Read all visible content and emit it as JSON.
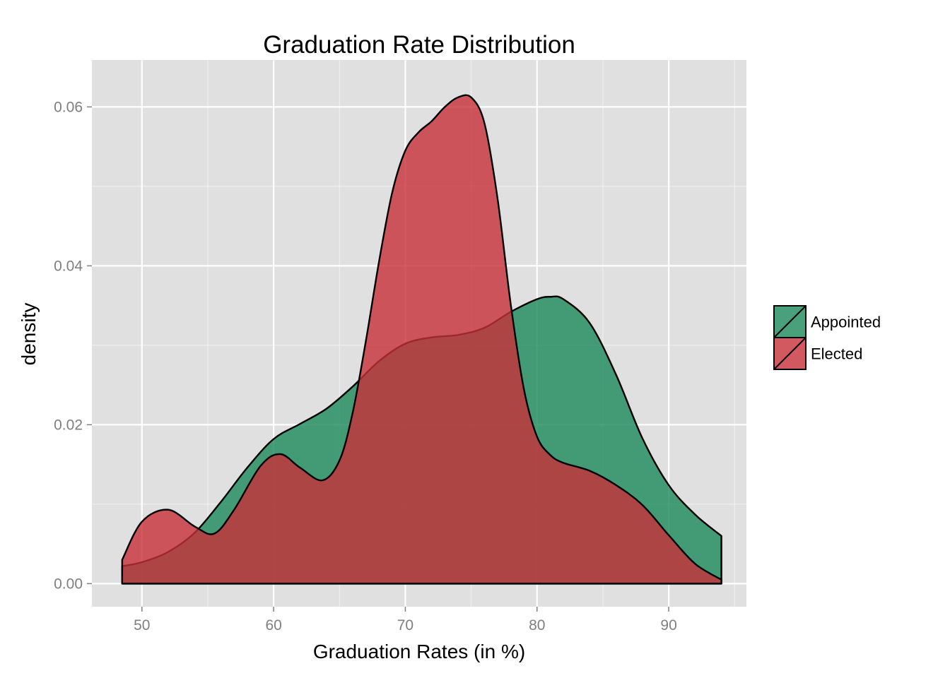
{
  "chart_data": {
    "type": "area",
    "title": "Graduation Rate Distribution",
    "xlabel": "Graduation Rates (in %)",
    "ylabel": "density",
    "xlim": [
      46.2,
      95.9
    ],
    "ylim": [
      -0.0029,
      0.0659
    ],
    "x_ticks": [
      50,
      60,
      70,
      80,
      90
    ],
    "x_tick_labels": [
      "50",
      "60",
      "70",
      "80",
      "90"
    ],
    "y_ticks": [
      0,
      0.02,
      0.04,
      0.06
    ],
    "y_tick_labels": [
      "0.00",
      "0.02",
      "0.04",
      "0.06"
    ],
    "grid": true,
    "legend": "right",
    "series": [
      {
        "name": "Appointed",
        "color": "#1b8a5a",
        "x": [
          48.5,
          50,
          52,
          54,
          56,
          58,
          60,
          62,
          64,
          66,
          68,
          70,
          72,
          74,
          76,
          78,
          80,
          81,
          82,
          84,
          86,
          88,
          90,
          92,
          94
        ],
        "y": [
          0.0022,
          0.0027,
          0.004,
          0.0064,
          0.0103,
          0.0146,
          0.0182,
          0.0201,
          0.022,
          0.0248,
          0.028,
          0.0302,
          0.031,
          0.0313,
          0.0322,
          0.0342,
          0.0358,
          0.0361,
          0.0358,
          0.0328,
          0.0263,
          0.0183,
          0.0124,
          0.0087,
          0.006
        ]
      },
      {
        "name": "Elected",
        "color": "#c8303a",
        "x": [
          48.5,
          50,
          52,
          54,
          55.5,
          57,
          59,
          60.5,
          62,
          63.7,
          65,
          66,
          67,
          68,
          69,
          70,
          71,
          72,
          73,
          74,
          75,
          76,
          77,
          78,
          79,
          80,
          81,
          82,
          84,
          86,
          88,
          90,
          92,
          94
        ],
        "y": [
          0.003,
          0.0078,
          0.0093,
          0.0072,
          0.0063,
          0.0093,
          0.0148,
          0.0163,
          0.0146,
          0.013,
          0.0155,
          0.0215,
          0.0305,
          0.0405,
          0.0492,
          0.0545,
          0.0568,
          0.0582,
          0.06,
          0.0612,
          0.0612,
          0.058,
          0.0485,
          0.0352,
          0.0245,
          0.0185,
          0.0162,
          0.0152,
          0.0142,
          0.0124,
          0.0099,
          0.0061,
          0.0025,
          0.0005
        ]
      }
    ]
  }
}
